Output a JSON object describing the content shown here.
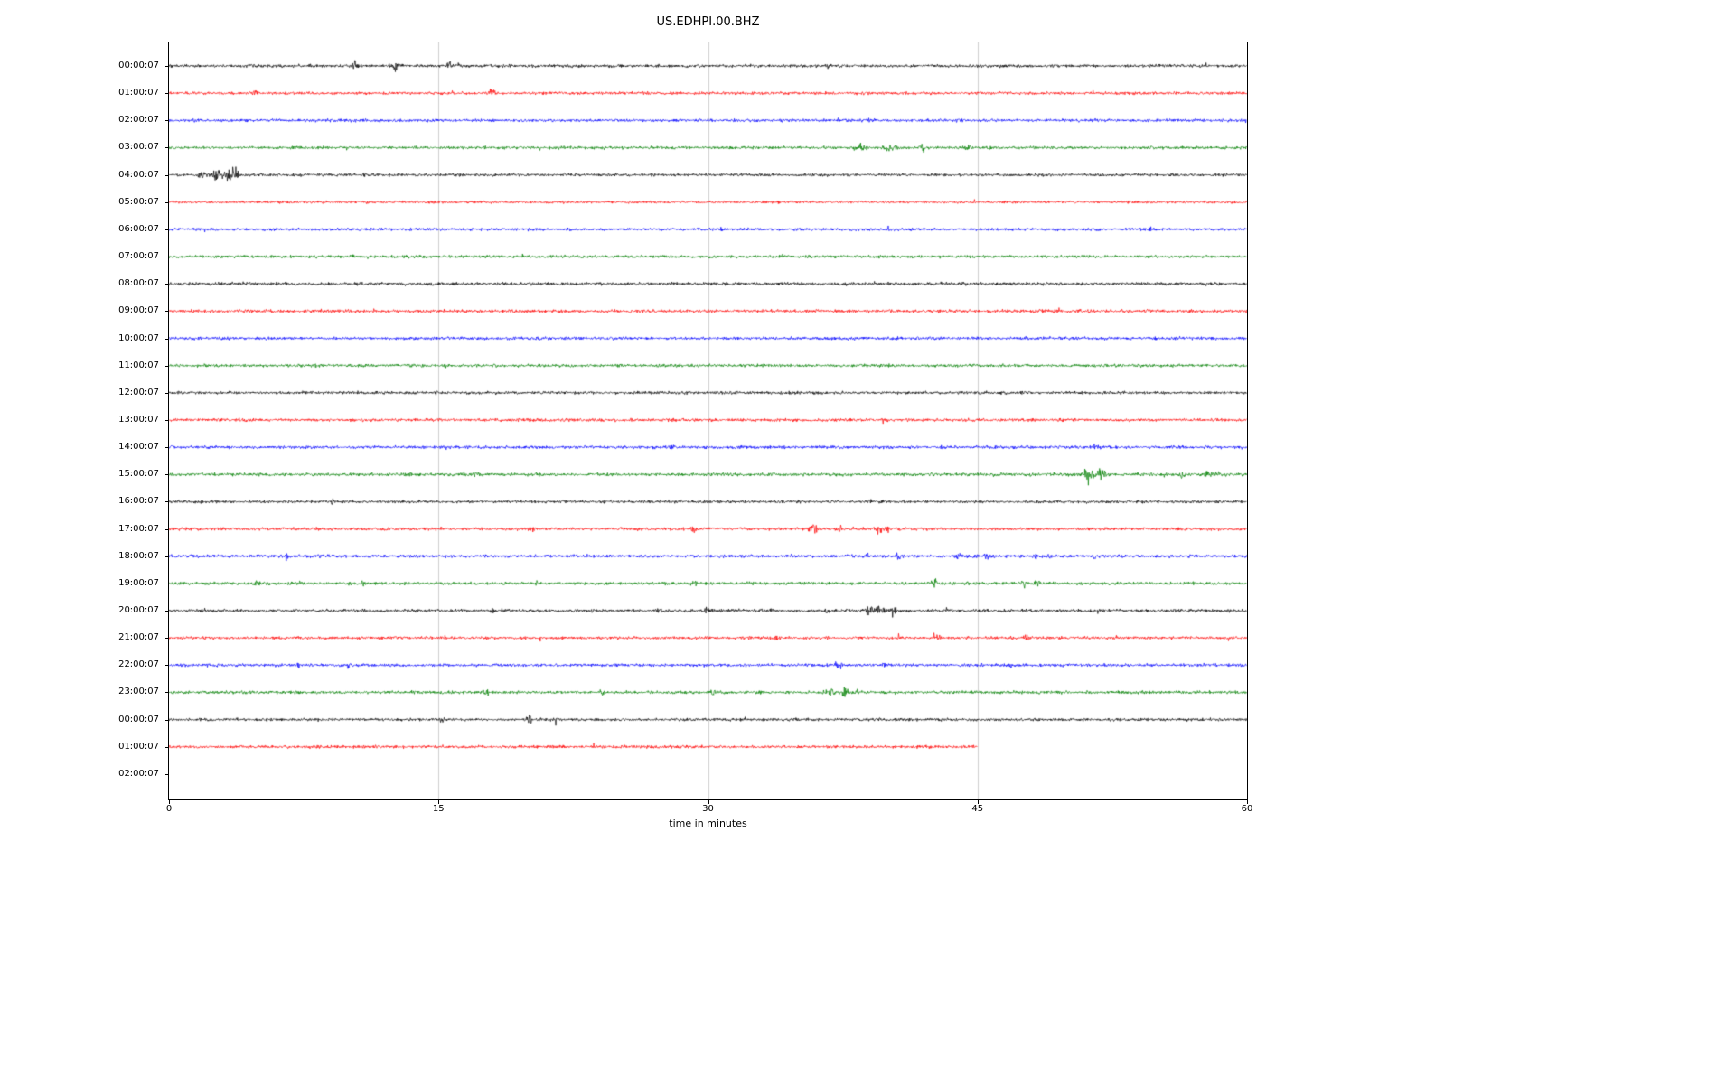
{
  "figure": {
    "title": "US.EDHPI.00.BHZ",
    "xlabel": "time in minutes"
  },
  "chart_data": {
    "type": "line",
    "subtype": "seismic-helicorder-day-plot",
    "title": "US.EDHPI.00.BHZ",
    "xlabel": "time in minutes",
    "ylabel": "",
    "x_range": [
      0,
      60
    ],
    "x_ticks": [
      0,
      15,
      30,
      45,
      60
    ],
    "grid_minutes": [
      15,
      30,
      45
    ],
    "grid_color": "#cfcfcf",
    "legend": "none",
    "color_cycle": [
      "#000000",
      "#ff0000",
      "#0000ff",
      "#008000"
    ],
    "rows": [
      {
        "label": "00:00:07",
        "color": "#000000",
        "noise": 1.9,
        "extent": 60,
        "events": [
          {
            "t": 10.3,
            "a": 7,
            "w": 0.15
          },
          {
            "t": 12.6,
            "a": 8,
            "w": 0.2
          },
          {
            "t": 15.6,
            "a": 5,
            "w": 0.12
          },
          {
            "t": 16.1,
            "a": 4,
            "w": 0.1
          },
          {
            "t": 24.5,
            "a": 4,
            "w": 0.1
          },
          {
            "t": 36.7,
            "a": 4,
            "w": 0.12
          }
        ]
      },
      {
        "label": "01:00:07",
        "color": "#ff0000",
        "noise": 1.8,
        "extent": 60,
        "events": [
          {
            "t": 4.8,
            "a": 6,
            "w": 0.12
          },
          {
            "t": 18.0,
            "a": 7,
            "w": 0.15
          }
        ]
      },
      {
        "label": "02:00:07",
        "color": "#0000ff",
        "noise": 1.9,
        "extent": 60,
        "events": []
      },
      {
        "label": "03:00:07",
        "color": "#008000",
        "noise": 1.8,
        "extent": 60,
        "events": [
          {
            "t": 38.5,
            "a": 7,
            "w": 0.3
          },
          {
            "t": 40.2,
            "a": 6,
            "w": 0.25
          },
          {
            "t": 42.0,
            "a": 9,
            "w": 0.12
          },
          {
            "t": 44.6,
            "a": 3,
            "w": 0.2
          },
          {
            "t": 45.7,
            "a": 3,
            "w": 0.15
          }
        ]
      },
      {
        "label": "04:00:07",
        "color": "#000000",
        "noise": 1.8,
        "extent": 60,
        "events": [
          {
            "t": 1.8,
            "a": 8,
            "w": 0.25
          },
          {
            "t": 2.6,
            "a": 9,
            "w": 0.2
          },
          {
            "t": 3.2,
            "a": 13,
            "w": 0.3
          },
          {
            "t": 3.7,
            "a": 11,
            "w": 0.2
          },
          {
            "t": 10.9,
            "a": 3,
            "w": 0.1
          }
        ]
      },
      {
        "label": "05:00:07",
        "color": "#ff0000",
        "noise": 1.6,
        "extent": 60,
        "events": []
      },
      {
        "label": "06:00:07",
        "color": "#0000ff",
        "noise": 1.8,
        "extent": 60,
        "events": [
          {
            "t": 30.7,
            "a": 3,
            "w": 0.1
          },
          {
            "t": 54.6,
            "a": 3,
            "w": 0.1
          }
        ]
      },
      {
        "label": "07:00:07",
        "color": "#008000",
        "noise": 1.8,
        "extent": 60,
        "events": [
          {
            "t": 10.2,
            "a": 3,
            "w": 0.1
          }
        ]
      },
      {
        "label": "08:00:07",
        "color": "#000000",
        "noise": 2.0,
        "extent": 60,
        "events": []
      },
      {
        "label": "09:00:07",
        "color": "#ff0000",
        "noise": 2.0,
        "extent": 60,
        "events": []
      },
      {
        "label": "10:00:07",
        "color": "#0000ff",
        "noise": 1.9,
        "extent": 60,
        "events": []
      },
      {
        "label": "11:00:07",
        "color": "#008000",
        "noise": 1.9,
        "extent": 60,
        "events": []
      },
      {
        "label": "12:00:07",
        "color": "#000000",
        "noise": 1.8,
        "extent": 60,
        "events": [
          {
            "t": 14.9,
            "a": 3,
            "w": 0.1
          }
        ]
      },
      {
        "label": "13:00:07",
        "color": "#ff0000",
        "noise": 1.9,
        "extent": 60,
        "events": []
      },
      {
        "label": "14:00:07",
        "color": "#0000ff",
        "noise": 1.9,
        "extent": 60,
        "events": [
          {
            "t": 27.9,
            "a": 5,
            "w": 0.15
          },
          {
            "t": 42.9,
            "a": 4,
            "w": 0.12
          },
          {
            "t": 51.5,
            "a": 4,
            "w": 0.12
          }
        ]
      },
      {
        "label": "15:00:07",
        "color": "#008000",
        "noise": 2.0,
        "extent": 60,
        "events": [
          {
            "t": 17.1,
            "a": 4,
            "w": 0.12
          },
          {
            "t": 20.6,
            "a": 4,
            "w": 0.12
          },
          {
            "t": 51.2,
            "a": 15,
            "w": 0.25
          },
          {
            "t": 51.9,
            "a": 9,
            "w": 0.2
          },
          {
            "t": 56.4,
            "a": 5,
            "w": 0.15
          },
          {
            "t": 57.8,
            "a": 7,
            "w": 0.2
          },
          {
            "t": 58.4,
            "a": 6,
            "w": 0.15
          }
        ]
      },
      {
        "label": "16:00:07",
        "color": "#000000",
        "noise": 1.8,
        "extent": 60,
        "events": [
          {
            "t": 9.1,
            "a": 7,
            "w": 0.1
          },
          {
            "t": 39.0,
            "a": 3,
            "w": 0.1
          }
        ]
      },
      {
        "label": "17:00:07",
        "color": "#ff0000",
        "noise": 1.9,
        "extent": 60,
        "events": [
          {
            "t": 20.2,
            "a": 6,
            "w": 0.12
          },
          {
            "t": 29.2,
            "a": 5,
            "w": 0.12
          },
          {
            "t": 35.9,
            "a": 7,
            "w": 0.25
          },
          {
            "t": 37.3,
            "a": 5,
            "w": 0.2
          },
          {
            "t": 39.5,
            "a": 8,
            "w": 0.15
          },
          {
            "t": 40.0,
            "a": 7,
            "w": 0.12
          }
        ]
      },
      {
        "label": "18:00:07",
        "color": "#0000ff",
        "noise": 2.0,
        "extent": 60,
        "events": [
          {
            "t": 6.6,
            "a": 6,
            "w": 0.12
          },
          {
            "t": 38.9,
            "a": 4,
            "w": 0.15
          },
          {
            "t": 40.6,
            "a": 7,
            "w": 0.15
          },
          {
            "t": 43.9,
            "a": 6,
            "w": 0.15
          },
          {
            "t": 45.5,
            "a": 4,
            "w": 0.12
          },
          {
            "t": 48.3,
            "a": 4,
            "w": 0.12
          },
          {
            "t": 51.5,
            "a": 3,
            "w": 0.1
          }
        ]
      },
      {
        "label": "19:00:07",
        "color": "#008000",
        "noise": 1.9,
        "extent": 60,
        "events": [
          {
            "t": 4.9,
            "a": 5,
            "w": 0.12
          },
          {
            "t": 7.4,
            "a": 4,
            "w": 0.12
          },
          {
            "t": 10.8,
            "a": 5,
            "w": 0.1
          },
          {
            "t": 20.5,
            "a": 5,
            "w": 0.12
          },
          {
            "t": 28.9,
            "a": 5,
            "w": 0.15
          },
          {
            "t": 29.4,
            "a": 4,
            "w": 0.12
          },
          {
            "t": 42.6,
            "a": 7,
            "w": 0.2
          },
          {
            "t": 44.5,
            "a": 4,
            "w": 0.12
          },
          {
            "t": 47.6,
            "a": 6,
            "w": 0.15
          },
          {
            "t": 48.3,
            "a": 4,
            "w": 0.12
          }
        ]
      },
      {
        "label": "20:00:07",
        "color": "#000000",
        "noise": 1.9,
        "extent": 60,
        "events": [
          {
            "t": 18.0,
            "a": 3,
            "w": 0.1
          },
          {
            "t": 27.2,
            "a": 5,
            "w": 0.15
          },
          {
            "t": 29.9,
            "a": 5,
            "w": 0.12
          },
          {
            "t": 33.5,
            "a": 5,
            "w": 0.12
          },
          {
            "t": 36.6,
            "a": 5,
            "w": 0.12
          },
          {
            "t": 38.9,
            "a": 9,
            "w": 0.3
          },
          {
            "t": 39.6,
            "a": 10,
            "w": 0.3
          },
          {
            "t": 40.3,
            "a": 8,
            "w": 0.25
          },
          {
            "t": 43.2,
            "a": 5,
            "w": 0.12
          }
        ]
      },
      {
        "label": "21:00:07",
        "color": "#ff0000",
        "noise": 1.8,
        "extent": 60,
        "events": [
          {
            "t": 33.8,
            "a": 3,
            "w": 0.1
          },
          {
            "t": 40.6,
            "a": 4,
            "w": 0.1
          },
          {
            "t": 42.7,
            "a": 8,
            "w": 0.15
          },
          {
            "t": 47.7,
            "a": 5,
            "w": 0.12
          }
        ]
      },
      {
        "label": "22:00:07",
        "color": "#0000ff",
        "noise": 1.9,
        "extent": 60,
        "events": [
          {
            "t": 7.2,
            "a": 5,
            "w": 0.12
          },
          {
            "t": 10.0,
            "a": 4,
            "w": 0.1
          },
          {
            "t": 37.3,
            "a": 6,
            "w": 0.2
          },
          {
            "t": 39.7,
            "a": 4,
            "w": 0.12
          },
          {
            "t": 46.8,
            "a": 4,
            "w": 0.12
          }
        ]
      },
      {
        "label": "23:00:07",
        "color": "#008000",
        "noise": 1.9,
        "extent": 60,
        "events": [
          {
            "t": 17.6,
            "a": 6,
            "w": 0.2
          },
          {
            "t": 24.1,
            "a": 5,
            "w": 0.12
          },
          {
            "t": 30.2,
            "a": 4,
            "w": 0.15
          },
          {
            "t": 33.0,
            "a": 4,
            "w": 0.12
          },
          {
            "t": 36.8,
            "a": 6,
            "w": 0.25
          },
          {
            "t": 37.6,
            "a": 7,
            "w": 0.2
          },
          {
            "t": 38.2,
            "a": 5,
            "w": 0.15
          }
        ]
      },
      {
        "label": "00:00:07",
        "color": "#000000",
        "noise": 1.8,
        "extent": 60,
        "events": [
          {
            "t": 15.2,
            "a": 4,
            "w": 0.12
          },
          {
            "t": 20.1,
            "a": 7,
            "w": 0.2
          },
          {
            "t": 21.5,
            "a": 6,
            "w": 0.15
          }
        ]
      },
      {
        "label": "01:00:07",
        "color": "#ff0000",
        "noise": 1.9,
        "extent": 45,
        "events": []
      },
      {
        "label": "02:00:07",
        "color": null,
        "noise": 0,
        "extent": 0,
        "events": []
      }
    ]
  }
}
